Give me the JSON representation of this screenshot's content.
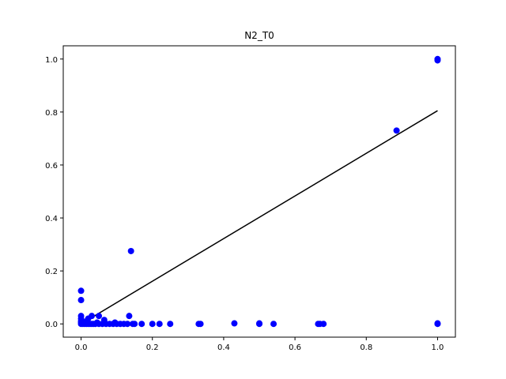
{
  "chart_data": {
    "type": "scatter",
    "title": "N2_T0",
    "xlabel": "",
    "ylabel": "",
    "xlim": [
      -0.05,
      1.05
    ],
    "ylim": [
      -0.05,
      1.05
    ],
    "xticks": [
      "0.0",
      "0.2",
      "0.4",
      "0.6",
      "0.8",
      "1.0"
    ],
    "yticks": [
      "0.0",
      "0.2",
      "0.4",
      "0.6",
      "0.8",
      "1.0"
    ],
    "xtick_values": [
      0.0,
      0.2,
      0.4,
      0.6,
      0.8,
      1.0
    ],
    "ytick_values": [
      0.0,
      0.2,
      0.4,
      0.6,
      0.8,
      1.0
    ],
    "grid": false,
    "point_color": "#0000ff",
    "line_color": "#000000",
    "points": [
      [
        0.0,
        0.0
      ],
      [
        0.0,
        0.005
      ],
      [
        0.0,
        0.01
      ],
      [
        0.0,
        0.02
      ],
      [
        0.0,
        0.03
      ],
      [
        0.0,
        0.09
      ],
      [
        0.0,
        0.125
      ],
      [
        0.005,
        0.0
      ],
      [
        0.01,
        0.0
      ],
      [
        0.01,
        0.005
      ],
      [
        0.015,
        0.0
      ],
      [
        0.015,
        0.01
      ],
      [
        0.02,
        0.0
      ],
      [
        0.02,
        0.02
      ],
      [
        0.025,
        0.0
      ],
      [
        0.03,
        0.0
      ],
      [
        0.03,
        0.03
      ],
      [
        0.035,
        0.0
      ],
      [
        0.04,
        0.0
      ],
      [
        0.045,
        0.005
      ],
      [
        0.05,
        0.0
      ],
      [
        0.05,
        0.03
      ],
      [
        0.06,
        0.0
      ],
      [
        0.065,
        0.015
      ],
      [
        0.07,
        0.0
      ],
      [
        0.08,
        0.0
      ],
      [
        0.09,
        0.0
      ],
      [
        0.095,
        0.005
      ],
      [
        0.1,
        0.0
      ],
      [
        0.11,
        0.0
      ],
      [
        0.12,
        0.0
      ],
      [
        0.13,
        0.0
      ],
      [
        0.135,
        0.03
      ],
      [
        0.14,
        0.275
      ],
      [
        0.145,
        0.0
      ],
      [
        0.15,
        0.0
      ],
      [
        0.17,
        0.0
      ],
      [
        0.2,
        0.0
      ],
      [
        0.22,
        0.0
      ],
      [
        0.25,
        0.0
      ],
      [
        0.33,
        0.0
      ],
      [
        0.335,
        0.0
      ],
      [
        0.43,
        0.002
      ],
      [
        0.5,
        0.0
      ],
      [
        0.5,
        0.002
      ],
      [
        0.54,
        0.0
      ],
      [
        0.665,
        0.0
      ],
      [
        0.67,
        0.0
      ],
      [
        0.68,
        0.0
      ],
      [
        0.885,
        0.73
      ],
      [
        1.0,
        0.0
      ],
      [
        1.0,
        0.002
      ],
      [
        1.0,
        0.995
      ],
      [
        1.0,
        1.0
      ]
    ],
    "fit_line": {
      "x": [
        0.0,
        1.0
      ],
      "y": [
        0.0,
        0.805
      ]
    }
  }
}
